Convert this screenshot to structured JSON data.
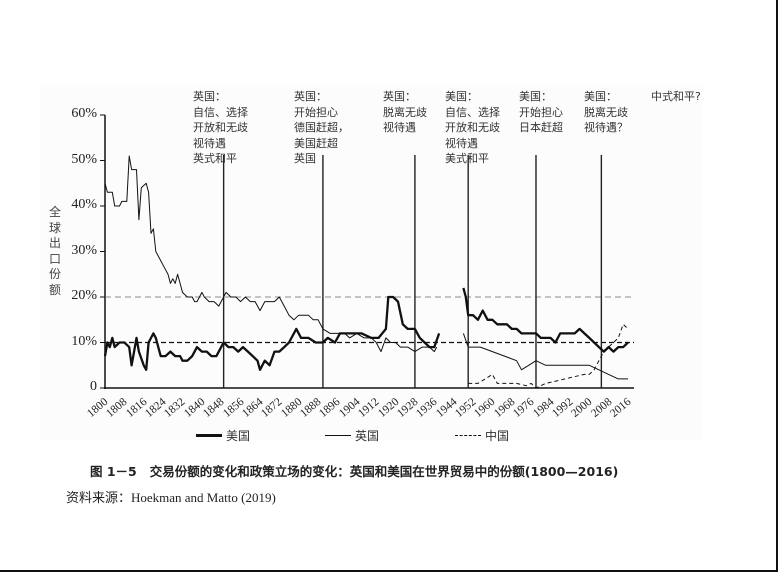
{
  "chart_data": {
    "type": "line",
    "title": "交易份额的变化和政策立场的变化：英国和美国在世界贸易中的份额(1800—2016)",
    "figure_label": "图 1－5",
    "xlabel": "",
    "ylabel": "全球出口份额",
    "ylim": [
      0,
      60
    ],
    "xlim": [
      1800,
      2016
    ],
    "yticks": [
      "0",
      "10%",
      "20%",
      "30%",
      "40%",
      "50%",
      "60%"
    ],
    "xticks": [
      "1800",
      "1808",
      "1816",
      "1824",
      "1832",
      "1840",
      "1848",
      "1856",
      "1864",
      "1872",
      "1880",
      "1888",
      "1896",
      "1904",
      "1912",
      "1920",
      "1928",
      "1936",
      "1944",
      "1952",
      "1960",
      "1968",
      "1976",
      "1984",
      "1992",
      "2000",
      "2008",
      "2016"
    ],
    "reference_lines": [
      {
        "y": 20,
        "style": "dashed-thin"
      },
      {
        "y": 10,
        "style": "dashed-thick"
      }
    ],
    "vertical_lines": [
      1849,
      1890,
      1928,
      1950,
      1978,
      2005
    ],
    "legend_position": "bottom",
    "grid": false,
    "series": [
      {
        "name": "美国",
        "style": "solid-thick",
        "points": [
          [
            1800,
            7
          ],
          [
            1801,
            10
          ],
          [
            1802,
            9
          ],
          [
            1803,
            11
          ],
          [
            1804,
            9
          ],
          [
            1806,
            10
          ],
          [
            1808,
            10
          ],
          [
            1810,
            9
          ],
          [
            1811,
            5
          ],
          [
            1812,
            8
          ],
          [
            1813,
            11
          ],
          [
            1814,
            8
          ],
          [
            1816,
            5
          ],
          [
            1817,
            4
          ],
          [
            1818,
            10
          ],
          [
            1820,
            12
          ],
          [
            1821,
            11
          ],
          [
            1823,
            7
          ],
          [
            1825,
            7
          ],
          [
            1827,
            8
          ],
          [
            1829,
            7
          ],
          [
            1831,
            7
          ],
          [
            1832,
            6
          ],
          [
            1834,
            6
          ],
          [
            1836,
            7
          ],
          [
            1838,
            9
          ],
          [
            1840,
            8
          ],
          [
            1842,
            8
          ],
          [
            1844,
            7
          ],
          [
            1846,
            7
          ],
          [
            1847,
            8
          ],
          [
            1849,
            10
          ],
          [
            1851,
            9
          ],
          [
            1853,
            9
          ],
          [
            1855,
            8
          ],
          [
            1857,
            9
          ],
          [
            1859,
            8
          ],
          [
            1861,
            7
          ],
          [
            1863,
            6
          ],
          [
            1864,
            4
          ],
          [
            1866,
            6
          ],
          [
            1868,
            5
          ],
          [
            1870,
            8
          ],
          [
            1872,
            8
          ],
          [
            1874,
            9
          ],
          [
            1876,
            10
          ],
          [
            1879,
            13
          ],
          [
            1881,
            11
          ],
          [
            1884,
            11
          ],
          [
            1887,
            10
          ],
          [
            1890,
            10
          ],
          [
            1892,
            11
          ],
          [
            1895,
            10
          ],
          [
            1897,
            12
          ],
          [
            1900,
            12
          ],
          [
            1903,
            12
          ],
          [
            1906,
            12
          ],
          [
            1910,
            11
          ],
          [
            1913,
            11
          ],
          [
            1916,
            13
          ],
          [
            1917,
            20
          ],
          [
            1919,
            20
          ],
          [
            1921,
            19
          ],
          [
            1923,
            14
          ],
          [
            1925,
            13
          ],
          [
            1928,
            13
          ],
          [
            1930,
            11
          ],
          [
            1932,
            10
          ],
          [
            1934,
            9
          ],
          [
            1936,
            9
          ],
          [
            1938,
            12
          ],
          [
            1948,
            22
          ],
          [
            1949,
            20
          ],
          [
            1950,
            16
          ],
          [
            1952,
            16
          ],
          [
            1954,
            15
          ],
          [
            1956,
            17
          ],
          [
            1958,
            15
          ],
          [
            1960,
            15
          ],
          [
            1962,
            14
          ],
          [
            1964,
            14
          ],
          [
            1966,
            14
          ],
          [
            1968,
            13
          ],
          [
            1970,
            13
          ],
          [
            1972,
            12
          ],
          [
            1974,
            12
          ],
          [
            1976,
            12
          ],
          [
            1978,
            12
          ],
          [
            1980,
            11
          ],
          [
            1982,
            11
          ],
          [
            1984,
            11
          ],
          [
            1986,
            10
          ],
          [
            1988,
            12
          ],
          [
            1990,
            12
          ],
          [
            1992,
            12
          ],
          [
            1994,
            12
          ],
          [
            1996,
            13
          ],
          [
            1998,
            12
          ],
          [
            2000,
            11
          ],
          [
            2002,
            10
          ],
          [
            2004,
            9
          ],
          [
            2006,
            8
          ],
          [
            2008,
            9
          ],
          [
            2010,
            8
          ],
          [
            2012,
            9
          ],
          [
            2014,
            9
          ],
          [
            2016,
            10
          ]
        ]
      },
      {
        "name": "英国",
        "style": "solid-thin",
        "points": [
          [
            1800,
            45
          ],
          [
            1801,
            43
          ],
          [
            1803,
            43
          ],
          [
            1804,
            40
          ],
          [
            1806,
            40
          ],
          [
            1807,
            41
          ],
          [
            1809,
            41
          ],
          [
            1810,
            51
          ],
          [
            1811,
            48
          ],
          [
            1813,
            48
          ],
          [
            1814,
            37
          ],
          [
            1815,
            44
          ],
          [
            1817,
            45
          ],
          [
            1818,
            43
          ],
          [
            1819,
            34
          ],
          [
            1820,
            35
          ],
          [
            1821,
            30
          ],
          [
            1822,
            29
          ],
          [
            1823,
            28
          ],
          [
            1825,
            26
          ],
          [
            1826,
            25
          ],
          [
            1827,
            23
          ],
          [
            1828,
            24
          ],
          [
            1829,
            23
          ],
          [
            1830,
            25
          ],
          [
            1831,
            23
          ],
          [
            1832,
            21
          ],
          [
            1834,
            20
          ],
          [
            1836,
            20
          ],
          [
            1837,
            19
          ],
          [
            1838,
            19
          ],
          [
            1840,
            21
          ],
          [
            1841,
            20
          ],
          [
            1843,
            19
          ],
          [
            1845,
            19
          ],
          [
            1847,
            18
          ],
          [
            1849,
            20
          ],
          [
            1850,
            21
          ],
          [
            1852,
            20
          ],
          [
            1854,
            20
          ],
          [
            1856,
            19
          ],
          [
            1858,
            20
          ],
          [
            1860,
            19
          ],
          [
            1862,
            19
          ],
          [
            1864,
            17
          ],
          [
            1866,
            19
          ],
          [
            1868,
            19
          ],
          [
            1870,
            19
          ],
          [
            1872,
            20
          ],
          [
            1874,
            18
          ],
          [
            1876,
            16
          ],
          [
            1878,
            15
          ],
          [
            1880,
            16
          ],
          [
            1882,
            16
          ],
          [
            1884,
            16
          ],
          [
            1886,
            15
          ],
          [
            1888,
            15
          ],
          [
            1890,
            13
          ],
          [
            1893,
            12
          ],
          [
            1896,
            12
          ],
          [
            1899,
            12
          ],
          [
            1901,
            11
          ],
          [
            1904,
            12
          ],
          [
            1907,
            11
          ],
          [
            1910,
            11
          ],
          [
            1912,
            10
          ],
          [
            1914,
            8
          ],
          [
            1916,
            11
          ],
          [
            1918,
            10
          ],
          [
            1920,
            10
          ],
          [
            1922,
            9
          ],
          [
            1925,
            9
          ],
          [
            1928,
            8
          ],
          [
            1931,
            9
          ],
          [
            1933,
            9
          ],
          [
            1934,
            9
          ],
          [
            1936,
            8
          ],
          [
            1937,
            9
          ],
          [
            1948,
            12
          ],
          [
            1950,
            9
          ],
          [
            1955,
            9
          ],
          [
            1960,
            8
          ],
          [
            1965,
            7
          ],
          [
            1970,
            6
          ],
          [
            1972,
            4
          ],
          [
            1975,
            5
          ],
          [
            1978,
            6
          ],
          [
            1982,
            5
          ],
          [
            1986,
            5
          ],
          [
            1990,
            5
          ],
          [
            1995,
            5
          ],
          [
            2000,
            5
          ],
          [
            2004,
            4
          ],
          [
            2008,
            3
          ],
          [
            2012,
            2
          ],
          [
            2016,
            2
          ]
        ]
      },
      {
        "name": "中国",
        "style": "dashed",
        "points": [
          [
            1950,
            1
          ],
          [
            1954,
            1
          ],
          [
            1960,
            3
          ],
          [
            1962,
            1
          ],
          [
            1966,
            1
          ],
          [
            1970,
            1
          ],
          [
            1974,
            0.5
          ],
          [
            1976,
            1
          ],
          [
            1978,
            0
          ],
          [
            1982,
            1
          ],
          [
            1986,
            1.5
          ],
          [
            1990,
            2
          ],
          [
            1994,
            2.5
          ],
          [
            1998,
            3
          ],
          [
            2000,
            3
          ],
          [
            2002,
            4
          ],
          [
            2004,
            6
          ],
          [
            2006,
            8
          ],
          [
            2008,
            9
          ],
          [
            2010,
            10
          ],
          [
            2012,
            11
          ],
          [
            2014,
            14
          ],
          [
            2016,
            13
          ]
        ]
      }
    ]
  },
  "annotations": [
    {
      "lines": [
        "英国：",
        "自信、选择",
        "开放和无歧",
        "视待遇",
        "英式和平"
      ]
    },
    {
      "lines": [
        "英国：",
        "开始担心",
        "德国赶超，",
        "美国赶超",
        "英国"
      ]
    },
    {
      "lines": [
        "英国：",
        "脱离无歧",
        "视待遇"
      ]
    },
    {
      "lines": [
        "美国：",
        "自信、选择",
        "开放和无歧",
        "视待遇",
        "美式和平"
      ]
    },
    {
      "lines": [
        "美国：",
        "开始担心",
        "日本赶超"
      ]
    },
    {
      "lines": [
        "美国：",
        "脱离无歧",
        "视待遇？"
      ]
    },
    {
      "lines": [
        "中式和平?"
      ]
    }
  ],
  "axis": {
    "ylabel_chars": [
      "全",
      "球",
      "出",
      "口",
      "份",
      "额"
    ]
  },
  "legend": {
    "usa": "美国",
    "uk": "英国",
    "china": "中国"
  },
  "caption": {
    "text": "图 1－5   交易份额的变化和政策立场的变化：英国和美国在世界贸易中的份额(1800—2016)"
  },
  "source": {
    "text": "资料来源：Hoekman and Matto (2019)"
  },
  "colors": {
    "line": "#111111",
    "text": "#222222",
    "panel_bg": "#fcfcfc"
  }
}
